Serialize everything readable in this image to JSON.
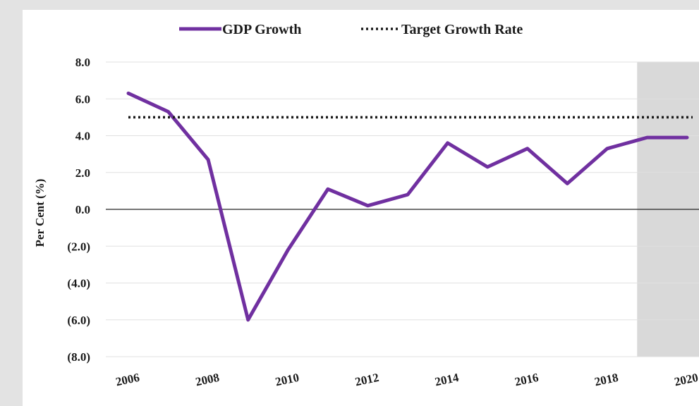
{
  "chart_data": {
    "type": "line",
    "title": "",
    "xlabel": "",
    "ylabel": "Per Cent (%)",
    "x": [
      2006,
      2007,
      2008,
      2009,
      2010,
      2011,
      2012,
      2013,
      2014,
      2015,
      2016,
      2017,
      2018,
      2019,
      2020
    ],
    "x_tick_labels": [
      "2006",
      "2008",
      "2010",
      "2012",
      "2014",
      "2016",
      "2018",
      "2020"
    ],
    "y_tick_labels": [
      "8.0",
      "6.0",
      "4.0",
      "2.0",
      "0.0",
      "(2.0)",
      "(4.0)",
      "(6.0)",
      "(8.0)"
    ],
    "ylim": [
      -8,
      8
    ],
    "xlim": [
      2006,
      2020
    ],
    "grid": true,
    "legend": "top",
    "shaded_region": {
      "x_start": 2018.75,
      "x_end": 2020.5,
      "color": "#d9d9d9"
    },
    "series": [
      {
        "name": "GDP Growth",
        "color": "#7030a0",
        "style": "solid",
        "values": [
          6.3,
          5.3,
          2.7,
          -6.0,
          -2.2,
          1.1,
          0.2,
          0.8,
          3.6,
          2.3,
          3.3,
          1.4,
          3.3,
          3.9,
          3.9
        ]
      },
      {
        "name": "Target Growth Rate",
        "color": "#1a1a1a",
        "style": "dotted",
        "values": [
          5,
          5,
          5,
          5,
          5,
          5,
          5,
          5,
          5,
          5,
          5,
          5,
          5,
          5,
          5
        ]
      }
    ]
  }
}
